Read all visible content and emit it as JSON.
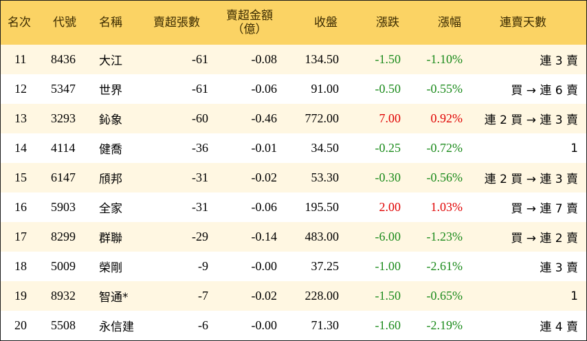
{
  "headers": {
    "rank": "名次",
    "code": "代號",
    "name": "名稱",
    "net_sell_lots": "賣超張數",
    "net_sell_amount_line1": "賣超金額",
    "net_sell_amount_line2": "（億）",
    "close": "收盤",
    "change": "漲跌",
    "pct_change": "漲幅",
    "streak": "連賣天數"
  },
  "colors": {
    "header_bg": "#fbd364",
    "alt_row_bg": "#fff7e2",
    "up": "#e00000",
    "down": "#1a8a1a"
  },
  "rows": [
    {
      "rank": "11",
      "code": "8436",
      "name": "大江",
      "lots": "-61",
      "amount": "-0.08",
      "close": "134.50",
      "change": "-1.50",
      "pct": "-1.10%",
      "streak": "連 3 賣",
      "dir": "neg"
    },
    {
      "rank": "12",
      "code": "5347",
      "name": "世界",
      "lots": "-61",
      "amount": "-0.06",
      "close": "91.00",
      "change": "-0.50",
      "pct": "-0.55%",
      "streak": "買 → 連 6 賣",
      "dir": "neg"
    },
    {
      "rank": "13",
      "code": "3293",
      "name": "鈊象",
      "lots": "-60",
      "amount": "-0.46",
      "close": "772.00",
      "change": "7.00",
      "pct": "0.92%",
      "streak": "連 2 買 → 連 3 賣",
      "dir": "pos"
    },
    {
      "rank": "14",
      "code": "4114",
      "name": "健喬",
      "lots": "-36",
      "amount": "-0.01",
      "close": "34.50",
      "change": "-0.25",
      "pct": "-0.72%",
      "streak": "1",
      "dir": "neg"
    },
    {
      "rank": "15",
      "code": "6147",
      "name": "頎邦",
      "lots": "-31",
      "amount": "-0.02",
      "close": "53.30",
      "change": "-0.30",
      "pct": "-0.56%",
      "streak": "連 2 買 → 連 3 賣",
      "dir": "neg"
    },
    {
      "rank": "16",
      "code": "5903",
      "name": "全家",
      "lots": "-31",
      "amount": "-0.06",
      "close": "195.50",
      "change": "2.00",
      "pct": "1.03%",
      "streak": "買 → 連 7 賣",
      "dir": "pos"
    },
    {
      "rank": "17",
      "code": "8299",
      "name": "群聯",
      "lots": "-29",
      "amount": "-0.14",
      "close": "483.00",
      "change": "-6.00",
      "pct": "-1.23%",
      "streak": "買 → 連 2 賣",
      "dir": "neg"
    },
    {
      "rank": "18",
      "code": "5009",
      "name": "榮剛",
      "lots": "-9",
      "amount": "-0.00",
      "close": "37.25",
      "change": "-1.00",
      "pct": "-2.61%",
      "streak": "連 3 賣",
      "dir": "neg"
    },
    {
      "rank": "19",
      "code": "8932",
      "name": "智通*",
      "lots": "-7",
      "amount": "-0.02",
      "close": "228.00",
      "change": "-1.50",
      "pct": "-0.65%",
      "streak": "1",
      "dir": "neg"
    },
    {
      "rank": "20",
      "code": "5508",
      "name": "永信建",
      "lots": "-6",
      "amount": "-0.00",
      "close": "71.30",
      "change": "-1.60",
      "pct": "-2.19%",
      "streak": "連 4 賣",
      "dir": "neg"
    }
  ]
}
